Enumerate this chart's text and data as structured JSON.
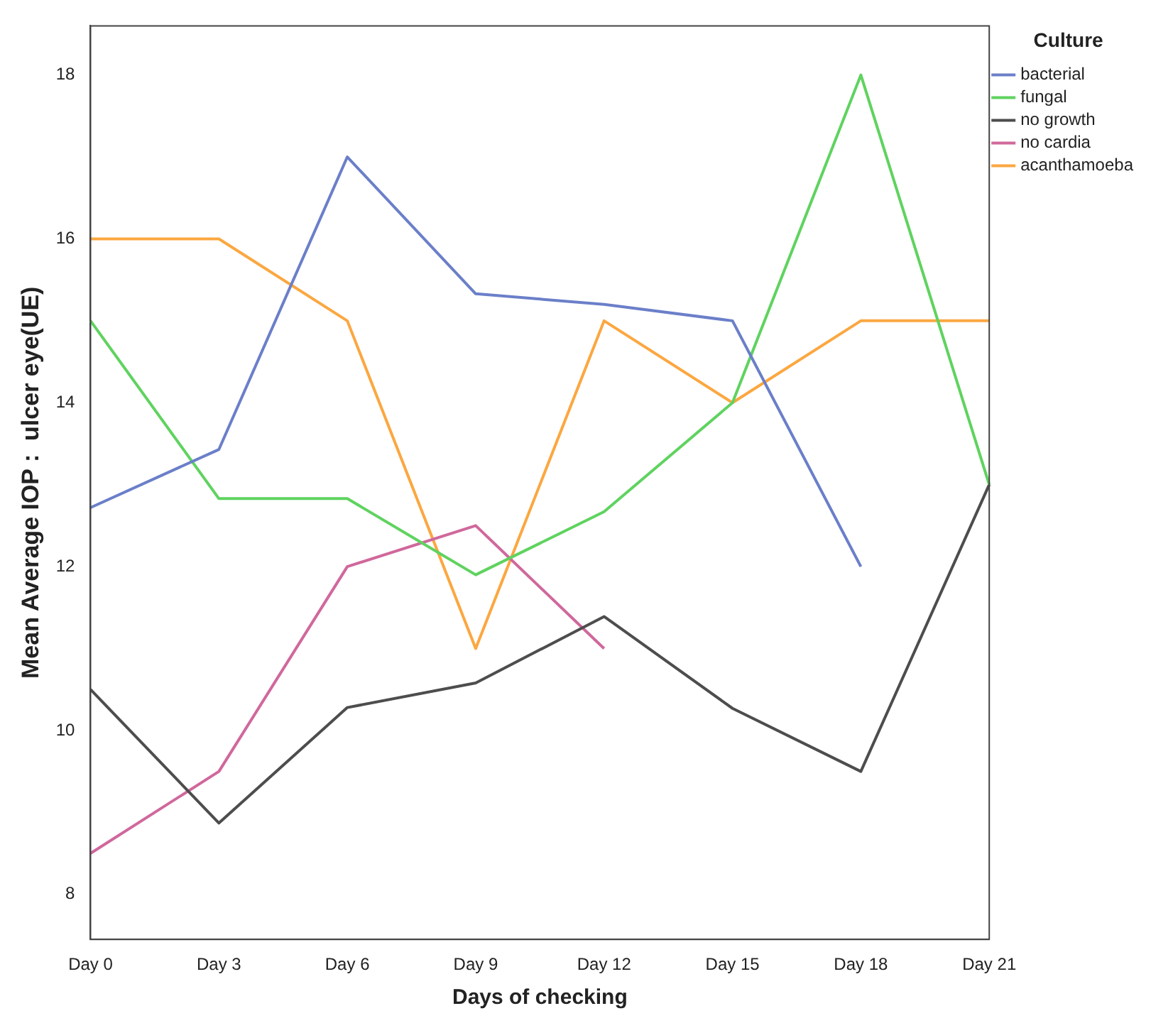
{
  "chart_data": {
    "type": "line",
    "xlabel": "Days of checking",
    "ylabel": "Mean Average IOP :  ulcer eye(UE)",
    "legend_title": "Culture",
    "legend": "right",
    "grid": false,
    "marker": "none",
    "line_style": "solid",
    "categories": [
      "Day 0",
      "Day 3",
      "Day 6",
      "Day 9",
      "Day 12",
      "Day 15",
      "Day 18",
      "Day 21"
    ],
    "ylim": [
      7.45,
      18.6
    ],
    "yticks": [
      8,
      10,
      12,
      14,
      16,
      18
    ],
    "series": [
      {
        "name": "bacterial",
        "color": "#6b7fc9",
        "values": [
          12.72,
          13.43,
          17.0,
          15.33,
          15.2,
          15.0,
          12.0,
          null
        ]
      },
      {
        "name": "fungal",
        "color": "#5fd35f",
        "values": [
          15.0,
          12.83,
          12.83,
          11.9,
          12.67,
          14.0,
          18.0,
          13.0
        ]
      },
      {
        "name": "no growth",
        "color": "#4d4d4d",
        "values": [
          10.5,
          8.87,
          10.28,
          10.58,
          11.39,
          10.27,
          9.5,
          13.0
        ]
      },
      {
        "name": "no cardia",
        "color": "#d0689c",
        "values": [
          8.5,
          9.5,
          12.0,
          12.5,
          11.0,
          null,
          null,
          null
        ]
      },
      {
        "name": "acanthamoeba",
        "color": "#fba740",
        "values": [
          16.0,
          16.0,
          15.0,
          11.0,
          15.0,
          14.0,
          15.0,
          15.0
        ]
      }
    ]
  }
}
